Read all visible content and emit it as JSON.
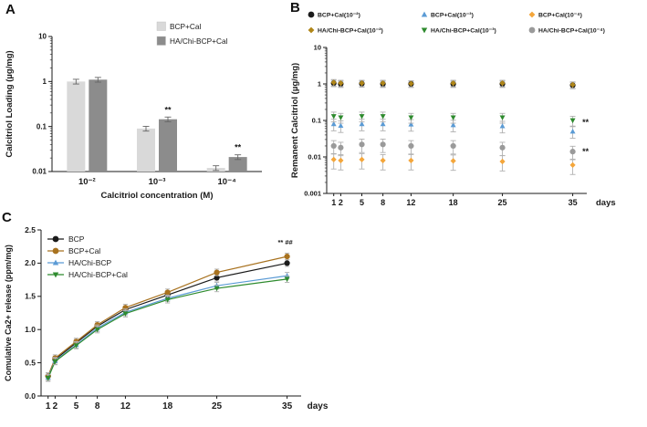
{
  "figure": {
    "panel_a_label": "A",
    "panel_b_label": "B",
    "panel_c_label": "C"
  },
  "chart_data": [
    {
      "id": "A",
      "type": "bar",
      "title": "",
      "ylabel": "Calcitriol Loading (µg/mg)",
      "xlabel": "Calcitriol concentration (M)",
      "yscale": "log",
      "ylim": [
        0.01,
        10
      ],
      "yticks": [
        "0.01",
        "0.1",
        "1",
        "10"
      ],
      "categories": [
        "10⁻²",
        "10⁻³",
        "10⁻⁴"
      ],
      "series": [
        {
          "name": "BCP+Cal",
          "color": "#d9d9d9",
          "values": [
            1.0,
            0.09,
            0.012
          ],
          "err_frac": 0.12
        },
        {
          "name": "HA/Chi-BCP+Cal",
          "color": "#8c8c8c",
          "values": [
            1.1,
            0.145,
            0.021
          ],
          "err_frac": 0.12
        }
      ],
      "annotations": [
        {
          "text": "**",
          "category_index": 1,
          "series_index": 1
        },
        {
          "text": "**",
          "category_index": 2,
          "series_index": 1
        }
      ],
      "legend_position": "top-right-inside"
    },
    {
      "id": "B",
      "type": "scatter",
      "title": "",
      "ylabel": "Remanent Calcitriol (µg/mg)",
      "xlabel": "days",
      "yscale": "log",
      "ylim": [
        0.001,
        10
      ],
      "yticks": [
        "0.001",
        "0.01",
        "0.1",
        "1",
        "10"
      ],
      "x": [
        1,
        2,
        5,
        8,
        12,
        18,
        25,
        35
      ],
      "xlim": [
        0,
        37
      ],
      "series": [
        {
          "name": "BCP+Cal(10⁻²)",
          "color": "#1a1a1a",
          "marker": "circle",
          "values": [
            1.05,
            1.0,
            1.02,
            1.0,
            1.0,
            1.0,
            1.0,
            0.92
          ],
          "err_frac": 0.2
        },
        {
          "name": "BCP+Cal(10⁻³)",
          "color": "#5b9bd5",
          "marker": "triangle-up",
          "values": [
            0.08,
            0.072,
            0.08,
            0.08,
            0.078,
            0.075,
            0.07,
            0.05
          ],
          "err_frac": 0.35
        },
        {
          "name": "BCP+Cal(10⁻⁴)",
          "color": "#f4a63b",
          "marker": "diamond",
          "values": [
            0.0085,
            0.008,
            0.0085,
            0.008,
            0.008,
            0.0078,
            0.0075,
            0.006
          ],
          "err_frac": 0.45
        },
        {
          "name": "HA/Chi-BCP+Cal(10⁻²)",
          "color": "#b08618",
          "marker": "diamond",
          "values": [
            1.1,
            1.05,
            1.05,
            1.05,
            1.02,
            1.05,
            1.05,
            0.95
          ],
          "err_frac": 0.2
        },
        {
          "name": "HA/Chi-BCP+Cal(10⁻³)",
          "color": "#2d8a2d",
          "marker": "triangle-down",
          "values": [
            0.13,
            0.12,
            0.13,
            0.13,
            0.12,
            0.12,
            0.12,
            0.1
          ],
          "err_frac": 0.3
        },
        {
          "name": "HA/Chi-BCP+Cal(10⁻⁴)",
          "color": "#9a9a9a",
          "marker": "circle",
          "values": [
            0.02,
            0.018,
            0.022,
            0.022,
            0.02,
            0.02,
            0.018,
            0.014
          ],
          "err_frac": 0.4
        }
      ],
      "annotations": [
        {
          "text": "**",
          "x": 35,
          "y": 0.09
        },
        {
          "text": "**",
          "x": 35,
          "y": 0.014
        }
      ],
      "legend_position": "top-outside-2rows"
    },
    {
      "id": "C",
      "type": "line",
      "title": "",
      "ylabel": "Comulative Ca2+ release (ppm/mg)",
      "xlabel": "days",
      "yscale": "linear",
      "ylim": [
        0.0,
        2.5
      ],
      "yticks": [
        "0.0",
        "0.5",
        "1.0",
        "1.5",
        "2.0",
        "2.5"
      ],
      "x": [
        1,
        2,
        5,
        8,
        12,
        18,
        25,
        35
      ],
      "xlim": [
        0,
        37
      ],
      "series": [
        {
          "name": "BCP",
          "color": "#1a1a1a",
          "marker": "circle",
          "values": [
            0.3,
            0.55,
            0.8,
            1.05,
            1.3,
            1.52,
            1.78,
            2.0
          ],
          "err": 0.05
        },
        {
          "name": "BCP+Cal",
          "color": "#a8721f",
          "marker": "circle",
          "values": [
            0.3,
            0.57,
            0.82,
            1.07,
            1.33,
            1.56,
            1.86,
            2.1
          ],
          "err": 0.05
        },
        {
          "name": "HA/Chi-BCP",
          "color": "#5b9bd5",
          "marker": "triangle-up",
          "values": [
            0.28,
            0.53,
            0.77,
            1.02,
            1.26,
            1.47,
            1.66,
            1.81
          ],
          "err": 0.05
        },
        {
          "name": "HA/Chi-BCP+Cal",
          "color": "#2e8b2e",
          "marker": "triangle-down",
          "values": [
            0.27,
            0.52,
            0.76,
            1.0,
            1.24,
            1.45,
            1.62,
            1.76
          ],
          "err": 0.05
        }
      ],
      "annotations": [
        {
          "text": "** ##",
          "x": 35,
          "y": 2.28
        }
      ],
      "legend_position": "top-left-inside"
    }
  ]
}
